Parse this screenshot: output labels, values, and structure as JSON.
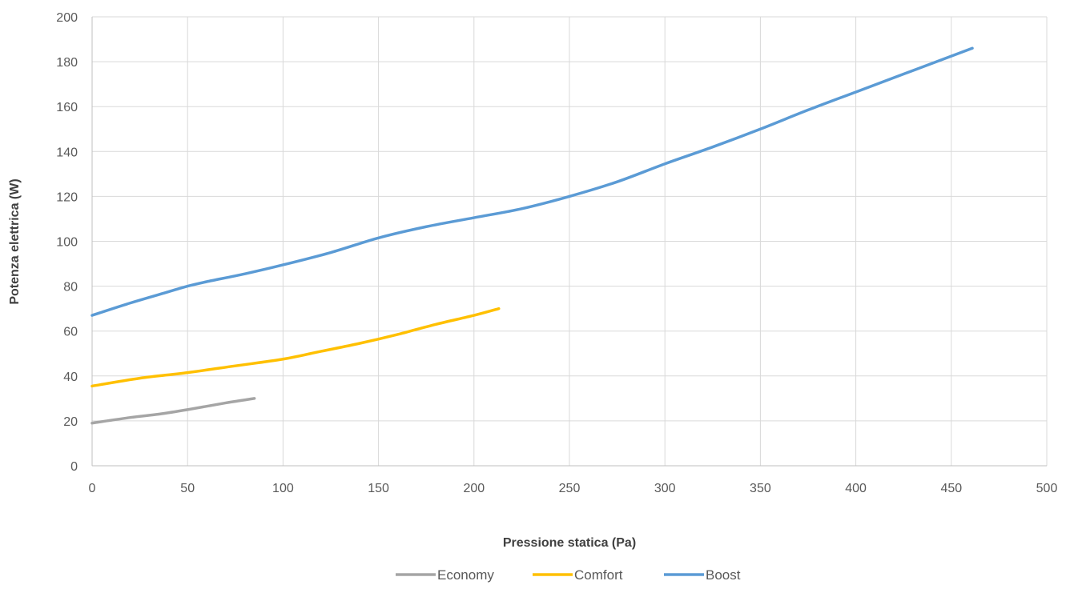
{
  "chart_data": {
    "type": "line",
    "title": "",
    "xlabel": "Pressione statica (Pa)",
    "ylabel": "Potenza elettrica (W)",
    "xlim": [
      0,
      500
    ],
    "ylim": [
      0,
      200
    ],
    "xticks": [
      0,
      50,
      100,
      150,
      200,
      250,
      300,
      350,
      400,
      450,
      500
    ],
    "yticks": [
      0,
      20,
      40,
      60,
      80,
      100,
      120,
      140,
      160,
      180,
      200
    ],
    "grid": true,
    "legend_position": "bottom",
    "series": [
      {
        "name": "Economy",
        "color": "#a5a5a5",
        "x": [
          0,
          20,
          35,
          50,
          70,
          85
        ],
        "y": [
          19,
          21.5,
          23,
          25,
          28,
          30
        ]
      },
      {
        "name": "Comfort",
        "color": "#ffc000",
        "x": [
          0,
          25,
          50,
          75,
          100,
          120,
          140,
          160,
          180,
          200,
          213
        ],
        "y": [
          35.5,
          39,
          41.5,
          44.5,
          47.5,
          51,
          54.5,
          58.5,
          63,
          67,
          70
        ]
      },
      {
        "name": "Boost",
        "color": "#5b9bd5",
        "x": [
          0,
          20,
          40,
          50,
          60,
          80,
          100,
          125,
          150,
          175,
          200,
          225,
          250,
          275,
          300,
          325,
          350,
          375,
          400,
          425,
          450,
          461
        ],
        "y": [
          67,
          72.5,
          77.5,
          80,
          82,
          85.5,
          89.5,
          95,
          101.5,
          106.5,
          110.5,
          114.5,
          120,
          126.5,
          134.5,
          142,
          150,
          158.5,
          166.5,
          174.5,
          182.5,
          186
        ]
      }
    ]
  }
}
